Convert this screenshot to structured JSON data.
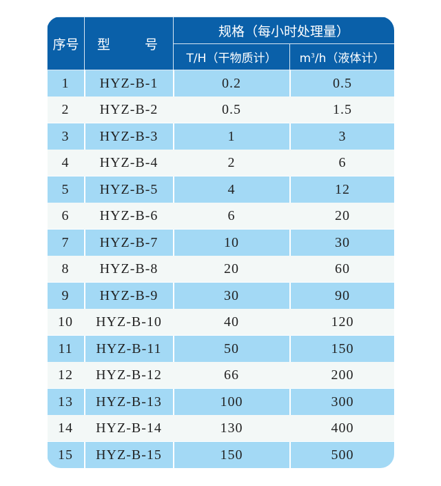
{
  "header": {
    "col_index": "序号",
    "col_model_a": "型",
    "col_model_b": "号",
    "col_spec": "规格（每小时处理量）",
    "col_dry": "T/H（干物质计）",
    "col_liquid_pre": "m",
    "col_liquid_sup": "3",
    "col_liquid_post": "/h（液体计）"
  },
  "colors": {
    "header_bg": "#0a60a9",
    "row_odd": "#a3d9f5",
    "row_even": "#f3f8f7"
  },
  "rows": [
    {
      "no": "1",
      "model": "HYZ-B-1",
      "dry": "0.2",
      "liquid": "0.5"
    },
    {
      "no": "2",
      "model": "HYZ-B-2",
      "dry": "0.5",
      "liquid": "1.5"
    },
    {
      "no": "3",
      "model": "HYZ-B-3",
      "dry": "1",
      "liquid": "3"
    },
    {
      "no": "4",
      "model": "HYZ-B-4",
      "dry": "2",
      "liquid": "6"
    },
    {
      "no": "5",
      "model": "HYZ-B-5",
      "dry": "4",
      "liquid": "12"
    },
    {
      "no": "6",
      "model": "HYZ-B-6",
      "dry": "6",
      "liquid": "20"
    },
    {
      "no": "7",
      "model": "HYZ-B-7",
      "dry": "10",
      "liquid": "30"
    },
    {
      "no": "8",
      "model": "HYZ-B-8",
      "dry": "20",
      "liquid": "60"
    },
    {
      "no": "9",
      "model": "HYZ-B-9",
      "dry": "30",
      "liquid": "90"
    },
    {
      "no": "10",
      "model": "HYZ-B-10",
      "dry": "40",
      "liquid": "120"
    },
    {
      "no": "11",
      "model": "HYZ-B-11",
      "dry": "50",
      "liquid": "150"
    },
    {
      "no": "12",
      "model": "HYZ-B-12",
      "dry": "66",
      "liquid": "200"
    },
    {
      "no": "13",
      "model": "HYZ-B-13",
      "dry": "100",
      "liquid": "300"
    },
    {
      "no": "14",
      "model": "HYZ-B-14",
      "dry": "130",
      "liquid": "400"
    },
    {
      "no": "15",
      "model": "HYZ-B-15",
      "dry": "150",
      "liquid": "500"
    }
  ]
}
